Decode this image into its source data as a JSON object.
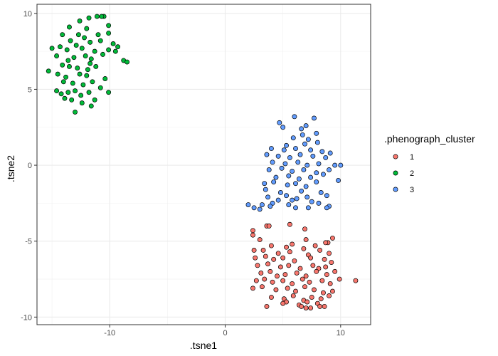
{
  "chart_data": {
    "type": "scatter",
    "xlabel": ".tsne1",
    "ylabel": ".tsne2",
    "xlim": [
      -16.3,
      12.6
    ],
    "ylim": [
      -10.5,
      10.6
    ],
    "xticks": [
      -10,
      0,
      10
    ],
    "yticks": [
      -10,
      -5,
      0,
      5,
      10
    ],
    "xtick_labels": [
      "-10",
      "0",
      "10"
    ],
    "ytick_labels": [
      "-10",
      "-5",
      "0",
      "5",
      "10"
    ],
    "grid": true,
    "legend": {
      "title": ".phenograph_cluster",
      "position": "right",
      "entries": [
        "1",
        "2",
        "3"
      ]
    },
    "series": [
      {
        "name": "1",
        "color": "#F8766D",
        "points": [
          [
            3.6,
            -4.0
          ],
          [
            3.8,
            -4.0
          ],
          [
            2.4,
            -4.3
          ],
          [
            2.4,
            -4.6
          ],
          [
            5.6,
            -3.9
          ],
          [
            6.9,
            -4.2
          ],
          [
            9.3,
            -4.8
          ],
          [
            8.9,
            -5.1
          ],
          [
            3.0,
            -4.9
          ],
          [
            4.0,
            -5.3
          ],
          [
            5.8,
            -5.2
          ],
          [
            5.3,
            -5.4
          ],
          [
            7.0,
            -4.9
          ],
          [
            7.8,
            -5.3
          ],
          [
            8.7,
            -5.1
          ],
          [
            2.5,
            -5.6
          ],
          [
            3.3,
            -5.6
          ],
          [
            4.6,
            -5.8
          ],
          [
            5.6,
            -5.7
          ],
          [
            6.8,
            -5.5
          ],
          [
            7.2,
            -5.9
          ],
          [
            8.2,
            -5.6
          ],
          [
            9.0,
            -5.8
          ],
          [
            2.6,
            -6.1
          ],
          [
            3.5,
            -6.0
          ],
          [
            4.2,
            -6.2
          ],
          [
            5.0,
            -6.1
          ],
          [
            6.0,
            -6.3
          ],
          [
            7.4,
            -6.1
          ],
          [
            8.6,
            -6.2
          ],
          [
            9.2,
            -6.4
          ],
          [
            2.8,
            -6.6
          ],
          [
            3.7,
            -6.5
          ],
          [
            4.8,
            -6.7
          ],
          [
            5.5,
            -6.6
          ],
          [
            6.5,
            -6.8
          ],
          [
            7.6,
            -6.6
          ],
          [
            8.1,
            -6.8
          ],
          [
            8.7,
            -6.7
          ],
          [
            3.1,
            -7.1
          ],
          [
            3.9,
            -7.0
          ],
          [
            4.5,
            -7.3
          ],
          [
            5.2,
            -7.2
          ],
          [
            6.2,
            -7.1
          ],
          [
            7.0,
            -7.3
          ],
          [
            7.9,
            -7.0
          ],
          [
            8.8,
            -7.2
          ],
          [
            9.5,
            -7.0
          ],
          [
            2.7,
            -7.6
          ],
          [
            3.4,
            -7.5
          ],
          [
            4.1,
            -7.7
          ],
          [
            5.0,
            -7.6
          ],
          [
            5.8,
            -7.8
          ],
          [
            6.7,
            -7.5
          ],
          [
            7.3,
            -7.7
          ],
          [
            8.4,
            -7.6
          ],
          [
            9.1,
            -7.8
          ],
          [
            9.9,
            -7.5
          ],
          [
            11.3,
            -7.6
          ],
          [
            2.4,
            -8.1
          ],
          [
            3.2,
            -8.0
          ],
          [
            4.4,
            -8.2
          ],
          [
            5.4,
            -8.1
          ],
          [
            6.1,
            -8.3
          ],
          [
            6.9,
            -8.0
          ],
          [
            7.7,
            -8.2
          ],
          [
            8.5,
            -8.4
          ],
          [
            9.3,
            -8.3
          ],
          [
            4.0,
            -8.7
          ],
          [
            5.1,
            -8.8
          ],
          [
            5.9,
            -8.6
          ],
          [
            6.8,
            -8.9
          ],
          [
            7.5,
            -8.7
          ],
          [
            8.3,
            -8.8
          ],
          [
            9.0,
            -8.6
          ],
          [
            3.6,
            -9.3
          ],
          [
            5.3,
            -9.0
          ],
          [
            6.4,
            -9.2
          ],
          [
            7.1,
            -9.0
          ],
          [
            8.0,
            -9.1
          ],
          [
            7.0,
            -9.4
          ],
          [
            7.4,
            -9.4
          ],
          [
            8.2,
            -9.3
          ],
          [
            8.6,
            -9.3
          ],
          [
            5.0,
            -9.1
          ],
          [
            6.6,
            -9.3
          ]
        ]
      },
      {
        "name": "2",
        "color": "#00BA38",
        "points": [
          [
            -11.8,
            9.7
          ],
          [
            -11.1,
            9.8
          ],
          [
            -10.5,
            9.8
          ],
          [
            -12.6,
            9.5
          ],
          [
            -13.5,
            9.1
          ],
          [
            -12.0,
            9.0
          ],
          [
            -10.1,
            9.2
          ],
          [
            -14.1,
            8.6
          ],
          [
            -12.7,
            8.6
          ],
          [
            -12.2,
            8.4
          ],
          [
            -11.0,
            8.6
          ],
          [
            -13.4,
            8.2
          ],
          [
            -12.9,
            7.9
          ],
          [
            -11.7,
            8.1
          ],
          [
            -10.8,
            8.2
          ],
          [
            -9.7,
            8.0
          ],
          [
            -15.0,
            7.7
          ],
          [
            -14.3,
            7.8
          ],
          [
            -13.7,
            7.6
          ],
          [
            -12.4,
            7.7
          ],
          [
            -11.3,
            7.5
          ],
          [
            -10.1,
            7.6
          ],
          [
            -9.3,
            7.8
          ],
          [
            -14.6,
            7.2
          ],
          [
            -13.1,
            7.1
          ],
          [
            -12.1,
            7.2
          ],
          [
            -11.6,
            7.0
          ],
          [
            -10.6,
            7.3
          ],
          [
            -8.8,
            6.9
          ],
          [
            -8.5,
            6.8
          ],
          [
            -14.1,
            6.6
          ],
          [
            -13.5,
            6.5
          ],
          [
            -12.8,
            6.4
          ],
          [
            -11.9,
            6.3
          ],
          [
            -11.2,
            6.5
          ],
          [
            -15.3,
            6.2
          ],
          [
            -14.5,
            6.0
          ],
          [
            -13.8,
            5.8
          ],
          [
            -12.6,
            6.0
          ],
          [
            -12.0,
            5.9
          ],
          [
            -10.4,
            5.7
          ],
          [
            -14.0,
            5.5
          ],
          [
            -13.2,
            5.4
          ],
          [
            -12.3,
            5.3
          ],
          [
            -11.5,
            5.5
          ],
          [
            -10.8,
            5.1
          ],
          [
            -14.6,
            4.9
          ],
          [
            -14.2,
            4.7
          ],
          [
            -13.6,
            4.8
          ],
          [
            -13.0,
            4.9
          ],
          [
            -12.5,
            4.6
          ],
          [
            -11.8,
            4.8
          ],
          [
            -10.1,
            4.8
          ],
          [
            -13.9,
            4.4
          ],
          [
            -13.3,
            4.3
          ],
          [
            -12.4,
            4.1
          ],
          [
            -11.6,
            3.9
          ],
          [
            -13.0,
            3.5
          ],
          [
            -10.7,
            9.8
          ],
          [
            -10.1,
            8.7
          ],
          [
            -9.5,
            7.5
          ],
          [
            -13.6,
            6.9
          ],
          [
            -11.7,
            6.7
          ],
          [
            -11.3,
            4.3
          ]
        ]
      },
      {
        "name": "3",
        "color": "#619CFF",
        "points": [
          [
            6.0,
            3.2
          ],
          [
            7.7,
            3.1
          ],
          [
            4.7,
            2.8
          ],
          [
            7.0,
            2.6
          ],
          [
            5.0,
            2.5
          ],
          [
            6.6,
            2.4
          ],
          [
            6.7,
            2.0
          ],
          [
            7.9,
            2.1
          ],
          [
            5.9,
            1.8
          ],
          [
            7.2,
            1.7
          ],
          [
            8.0,
            1.5
          ],
          [
            5.3,
            1.3
          ],
          [
            6.9,
            1.4
          ],
          [
            4.0,
            1.1
          ],
          [
            5.1,
            1.0
          ],
          [
            6.1,
            1.1
          ],
          [
            7.4,
            1.0
          ],
          [
            8.4,
            0.9
          ],
          [
            9.1,
            0.8
          ],
          [
            3.6,
            0.7
          ],
          [
            4.6,
            0.6
          ],
          [
            5.6,
            0.5
          ],
          [
            6.5,
            0.7
          ],
          [
            7.6,
            0.6
          ],
          [
            8.7,
            0.5
          ],
          [
            4.1,
            0.2
          ],
          [
            5.2,
            0.1
          ],
          [
            6.3,
            0.2
          ],
          [
            7.1,
            0.0
          ],
          [
            8.1,
            0.1
          ],
          [
            9.5,
            0.0
          ],
          [
            10.0,
            0.0
          ],
          [
            3.8,
            -0.3
          ],
          [
            4.9,
            -0.2
          ],
          [
            5.8,
            -0.4
          ],
          [
            6.8,
            -0.3
          ],
          [
            7.9,
            -0.5
          ],
          [
            9.0,
            -0.3
          ],
          [
            4.4,
            -0.8
          ],
          [
            5.5,
            -0.7
          ],
          [
            6.4,
            -0.9
          ],
          [
            7.4,
            -0.8
          ],
          [
            8.5,
            -0.6
          ],
          [
            3.4,
            -1.2
          ],
          [
            4.2,
            -1.1
          ],
          [
            5.4,
            -1.3
          ],
          [
            6.1,
            -1.2
          ],
          [
            7.0,
            -1.4
          ],
          [
            7.9,
            -1.1
          ],
          [
            9.8,
            -1.0
          ],
          [
            3.5,
            -1.6
          ],
          [
            4.8,
            -1.8
          ],
          [
            6.6,
            -1.7
          ],
          [
            8.3,
            -1.8
          ],
          [
            3.7,
            -2.1
          ],
          [
            5.3,
            -2.0
          ],
          [
            6.2,
            -2.2
          ],
          [
            7.1,
            -2.1
          ],
          [
            8.8,
            -2.0
          ],
          [
            4.6,
            -2.3
          ],
          [
            5.8,
            -2.3
          ],
          [
            3.2,
            -2.6
          ],
          [
            4.1,
            -2.5
          ],
          [
            5.5,
            -2.6
          ],
          [
            7.5,
            -2.4
          ],
          [
            8.1,
            -2.5
          ],
          [
            2.0,
            -2.6
          ],
          [
            2.5,
            -2.8
          ],
          [
            3.0,
            -2.9
          ],
          [
            3.9,
            -2.7
          ],
          [
            6.1,
            -2.8
          ],
          [
            7.2,
            -2.8
          ],
          [
            9.0,
            -2.7
          ],
          [
            8.8,
            -2.8
          ]
        ]
      }
    ]
  }
}
